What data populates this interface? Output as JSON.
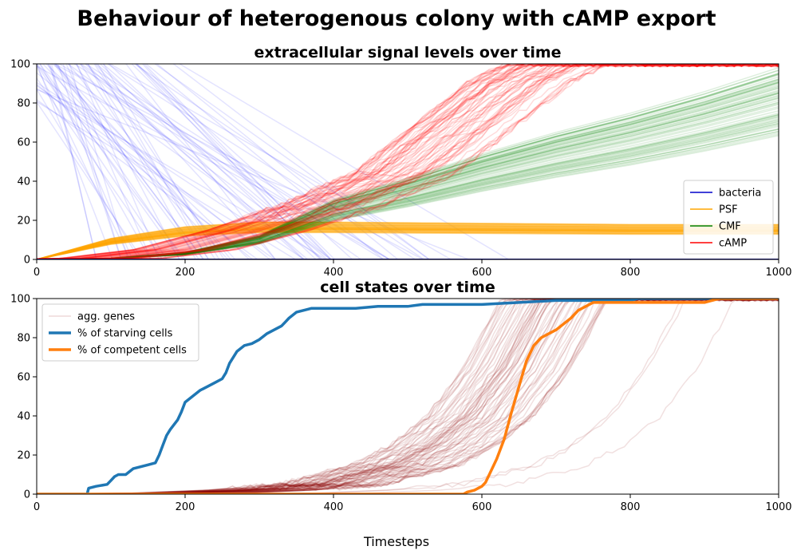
{
  "figure": {
    "suptitle": "Behaviour of heterogenous colony with cAMP export",
    "xlabel": "Timesteps"
  },
  "chart_data": [
    {
      "type": "line",
      "title": "extracellular signal levels over time",
      "xlim": [
        0,
        1000
      ],
      "ylim": [
        0,
        100
      ],
      "xticks": [
        "0",
        "200",
        "400",
        "600",
        "800",
        "1000"
      ],
      "yticks": [
        "0",
        "20",
        "40",
        "60",
        "80",
        "100"
      ],
      "grid": false,
      "legend_position": "lower right",
      "legend": [
        {
          "label": "bacteria",
          "color": "#0000cc"
        },
        {
          "label": "PSF",
          "color": "#ffa500"
        },
        {
          "label": "CMF",
          "color": "#008000"
        },
        {
          "label": "cAMP",
          "color": "#ff0000"
        }
      ],
      "series": [
        {
          "name": "bacteria",
          "color": "#0000ff",
          "note": "many faint per-cell traces",
          "typical_x": [
            0,
            150,
            250,
            400,
            1000
          ],
          "typical_y": [
            100,
            60,
            20,
            0,
            0
          ]
        },
        {
          "name": "PSF",
          "color": "#ffa500",
          "typical_x": [
            0,
            100,
            200,
            300,
            400,
            600,
            800,
            1000
          ],
          "typical_y": [
            0,
            9,
            14,
            16,
            16,
            15.5,
            15,
            15
          ]
        },
        {
          "name": "CMF",
          "color": "#008000",
          "typical_x": [
            0,
            100,
            200,
            300,
            400,
            500,
            600,
            700,
            800,
            900,
            1000
          ],
          "typical_y": [
            0,
            0.5,
            3,
            10,
            25,
            34,
            44,
            53,
            61,
            70,
            80
          ]
        },
        {
          "name": "cAMP",
          "color": "#ff0000",
          "typical_x": [
            0,
            100,
            200,
            300,
            400,
            500,
            600,
            650,
            700
          ],
          "typical_y": [
            0,
            0.5,
            5,
            15,
            28,
            45,
            75,
            90,
            100
          ]
        }
      ]
    },
    {
      "type": "line",
      "title": "cell states over time",
      "xlim": [
        0,
        1000
      ],
      "ylim": [
        0,
        100
      ],
      "xticks": [
        "0",
        "200",
        "400",
        "600",
        "800",
        "1000"
      ],
      "yticks": [
        "0",
        "20",
        "40",
        "60",
        "80",
        "100"
      ],
      "grid": false,
      "legend_position": "upper left",
      "legend": [
        {
          "label": "agg. genes",
          "color": "#8b0000",
          "style": "faint"
        },
        {
          "label": "% of starving cells",
          "color": "#1f77b4",
          "style": "thick"
        },
        {
          "label": "% of competent cells",
          "color": "#ff7f0e",
          "style": "thick"
        }
      ],
      "series": [
        {
          "name": "% of starving cells",
          "color": "#1f77b4",
          "x": [
            0,
            68,
            70,
            80,
            95,
            100,
            105,
            110,
            120,
            130,
            140,
            150,
            160,
            165,
            170,
            175,
            180,
            190,
            195,
            200,
            210,
            220,
            230,
            240,
            250,
            255,
            260,
            270,
            280,
            290,
            300,
            310,
            320,
            330,
            335,
            340,
            350,
            360,
            370,
            380,
            400,
            430,
            460,
            480,
            500,
            520,
            530,
            560,
            600,
            650,
            700,
            800,
            810,
            1000
          ],
          "y": [
            0,
            0,
            3,
            4,
            5,
            7,
            9,
            10,
            10,
            13,
            14,
            15,
            16,
            20,
            25,
            30,
            33,
            38,
            42,
            47,
            50,
            53,
            55,
            57,
            59,
            62,
            67,
            73,
            76,
            77,
            79,
            82,
            84,
            86,
            88,
            90,
            93,
            94,
            95,
            95,
            95,
            95,
            96,
            96,
            96,
            97,
            97,
            97,
            97,
            98,
            99,
            99,
            100,
            100
          ]
        },
        {
          "name": "% of competent cells",
          "color": "#ff7f0e",
          "x": [
            0,
            200,
            400,
            575,
            580,
            590,
            600,
            605,
            610,
            620,
            630,
            640,
            650,
            660,
            670,
            680,
            690,
            700,
            710,
            720,
            730,
            740,
            750,
            800,
            900,
            920,
            1000
          ],
          "y": [
            0,
            0,
            0,
            0,
            1,
            2,
            4,
            6,
            10,
            18,
            28,
            42,
            55,
            68,
            76,
            80,
            82,
            84,
            87,
            90,
            94,
            96,
            98,
            98,
            98,
            100,
            100
          ]
        },
        {
          "name": "agg. genes",
          "color": "#8b0000",
          "note": "many faint per-cell traces",
          "typical_x": [
            0,
            200,
            300,
            400,
            500,
            550,
            600,
            650,
            700
          ],
          "typical_y": [
            0,
            0.5,
            2,
            5,
            15,
            25,
            40,
            65,
            100
          ]
        }
      ]
    }
  ]
}
